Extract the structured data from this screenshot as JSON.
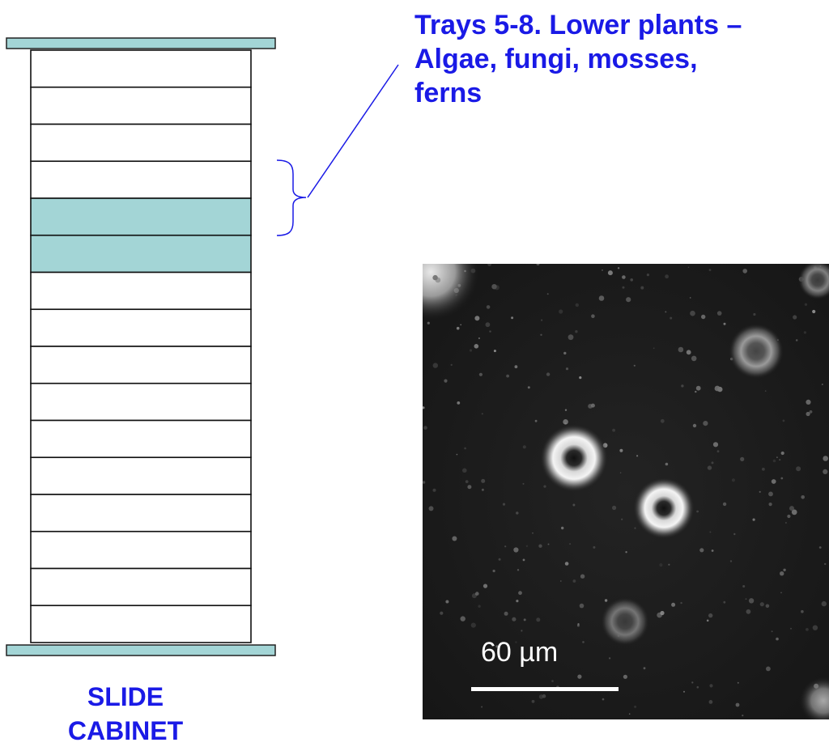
{
  "callout": {
    "line1": "Trays 5-8. Lower plants –",
    "line2": "Algae, fungi, mosses,",
    "line3": "ferns"
  },
  "cabinet": {
    "label_line1": "SLIDE",
    "label_line2": "CABINET",
    "tray_count": 16,
    "highlighted_trays": [
      4,
      5
    ],
    "highlight_color": "#a3d5d6",
    "end_cap_color": "#a3d5d6"
  },
  "accent_color": "#1a1ae6",
  "micrograph": {
    "scale_label": "60 µm"
  }
}
